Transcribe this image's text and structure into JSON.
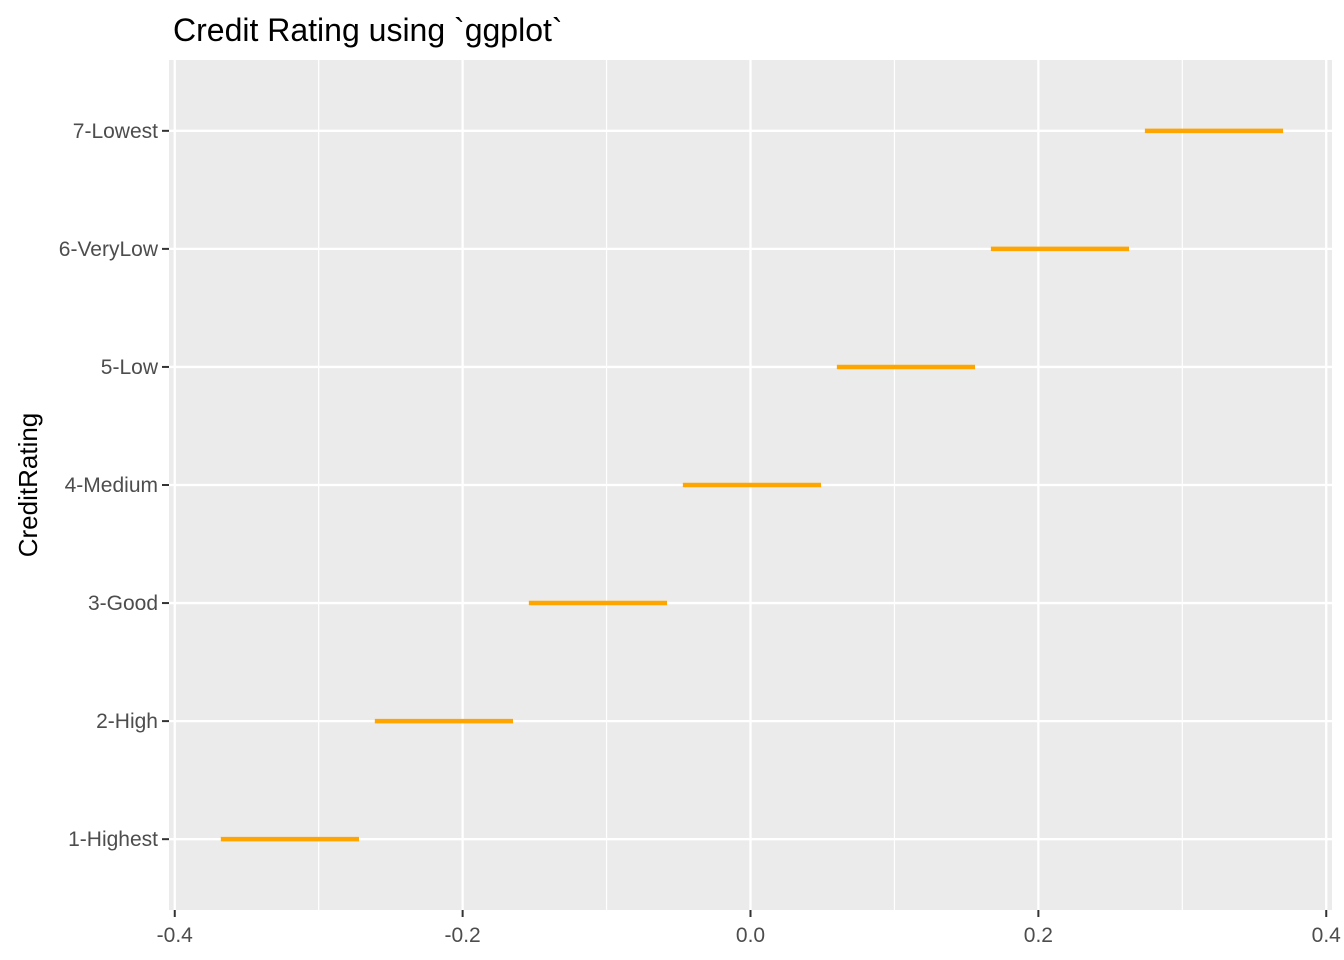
{
  "chart_data": {
    "type": "bar",
    "title": "Credit Rating  using `ggplot`",
    "xlabel": "",
    "ylabel": "CreditRating",
    "xlim": [
      -0.404,
      0.404
    ],
    "xticks": [
      -0.4,
      -0.2,
      0.0,
      0.2,
      0.4
    ],
    "xtick_labels": [
      "-0.4",
      "-0.2",
      "0.0",
      "0.2",
      "0.4"
    ],
    "categories": [
      "1-Highest",
      "2-High",
      "3-Good",
      "4-Medium",
      "5-Low",
      "6-VeryLow",
      "7-Lowest"
    ],
    "series": [
      {
        "segments": [
          {
            "category": "1-Highest",
            "xmin": -0.368,
            "xmax": -0.272
          },
          {
            "category": "2-High",
            "xmin": -0.261,
            "xmax": -0.165
          },
          {
            "category": "3-Good",
            "xmin": -0.154,
            "xmax": -0.058
          },
          {
            "category": "4-Medium",
            "xmin": -0.047,
            "xmax": 0.049
          },
          {
            "category": "5-Low",
            "xmin": 0.06,
            "xmax": 0.156
          },
          {
            "category": "6-VeryLow",
            "xmin": 0.167,
            "xmax": 0.263
          },
          {
            "category": "7-Lowest",
            "xmin": 0.274,
            "xmax": 0.37
          }
        ]
      }
    ],
    "grid": true,
    "legend": "none",
    "colors": {
      "segment": "#FFA500",
      "panel": "#EBEBEB",
      "grid_major": "#FFFFFF",
      "tick_text": "#4D4D4D",
      "tick_mark": "#333333"
    }
  }
}
